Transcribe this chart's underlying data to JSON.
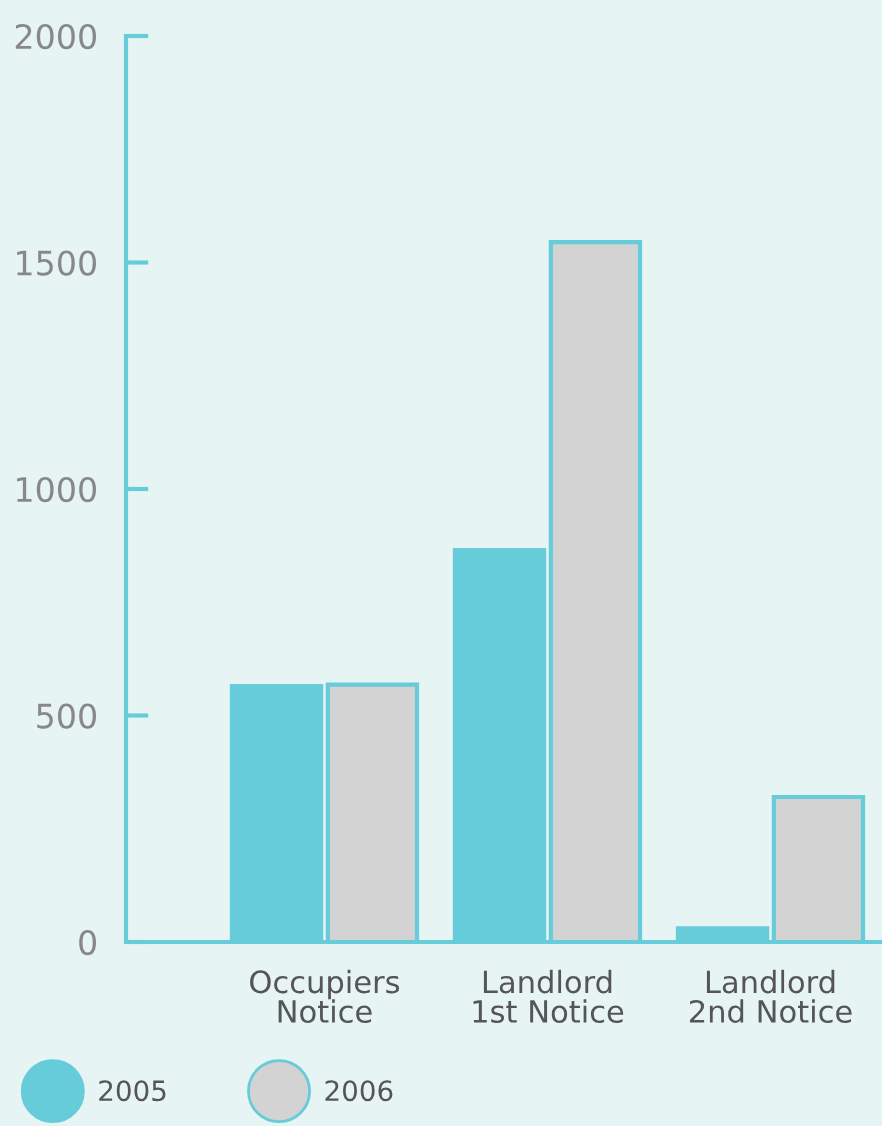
{
  "chart_data": {
    "type": "bar",
    "categories": [
      "Occupiers\nNotice",
      "Landlord\n1st Notice",
      "Landlord\n2nd Notice"
    ],
    "series": [
      {
        "name": "2005",
        "color": "#66ccd9",
        "values": [
          565,
          865,
          30
        ]
      },
      {
        "name": "2006",
        "color": "#d3d3d3",
        "values": [
          568,
          1545,
          320
        ]
      }
    ],
    "ylim": [
      0,
      2000
    ],
    "yticks": [
      0,
      500,
      1000,
      1500,
      2000
    ],
    "grid": false,
    "legend": "bottom left"
  }
}
